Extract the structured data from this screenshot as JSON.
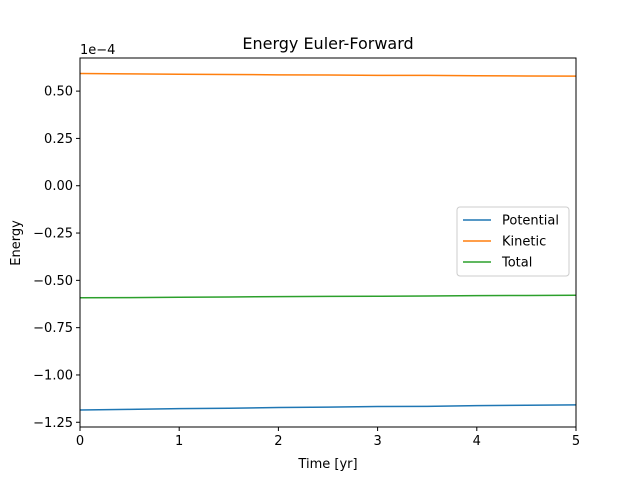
{
  "chart_data": {
    "type": "line",
    "title": "Energy Euler-Forward",
    "xlabel": "Time [yr]",
    "ylabel": "Energy",
    "offset_label": "1e−4",
    "xlim": [
      0,
      5
    ],
    "ylim": [
      -1.275,
      0.675
    ],
    "x_ticks": [
      0,
      1,
      2,
      3,
      4,
      5
    ],
    "x_tick_labels": [
      "0",
      "1",
      "2",
      "3",
      "4",
      "5"
    ],
    "y_ticks": [
      -1.25,
      -1.0,
      -0.75,
      -0.5,
      -0.25,
      0.0,
      0.25,
      0.5
    ],
    "y_tick_labels": [
      "−1.25",
      "−1.00",
      "−0.75",
      "−0.50",
      "−0.25",
      "0.00",
      "0.25",
      "0.50"
    ],
    "grid": false,
    "legend_position": "center-right",
    "x": [
      0,
      0.5,
      1,
      1.5,
      2,
      2.5,
      3,
      3.5,
      4,
      4.5,
      5
    ],
    "series": [
      {
        "name": "Potential",
        "color": "#1f77b4",
        "values": [
          -1.185,
          -1.182,
          -1.178,
          -1.176,
          -1.172,
          -1.17,
          -1.167,
          -1.166,
          -1.162,
          -1.16,
          -1.158
        ]
      },
      {
        "name": "Kinetic",
        "color": "#ff7f0e",
        "values": [
          0.593,
          0.591,
          0.589,
          0.588,
          0.586,
          0.585,
          0.583,
          0.583,
          0.581,
          0.58,
          0.579
        ]
      },
      {
        "name": "Total",
        "color": "#2ca02c",
        "values": [
          -0.592,
          -0.591,
          -0.589,
          -0.588,
          -0.586,
          -0.585,
          -0.584,
          -0.583,
          -0.581,
          -0.58,
          -0.579
        ]
      }
    ]
  }
}
